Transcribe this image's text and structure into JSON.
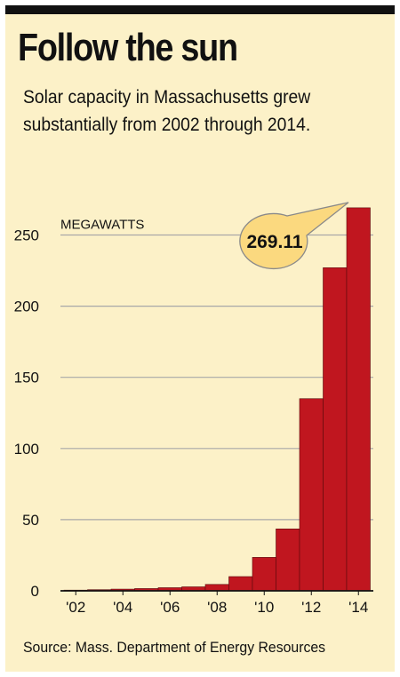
{
  "header": {
    "title": "Follow the sun",
    "subtitle": "Solar capacity in Massachusetts grew substantially from 2002 through 2014."
  },
  "source": "Source: Mass. Department of Energy Resources",
  "callout": {
    "label": "269.11"
  },
  "colors": {
    "background": "#fcf1c8",
    "bar": "#c0161f",
    "callout": "#fbd97f",
    "grid": "#a8a8a8",
    "topRule": "#111111"
  },
  "chart_data": {
    "type": "bar",
    "title": "Follow the sun",
    "ylabel": "MEGAWATTS",
    "xlabel": "",
    "ylim": [
      0,
      270
    ],
    "yticks": [
      0,
      50,
      100,
      150,
      200,
      250
    ],
    "categories": [
      "2002",
      "2003",
      "2004",
      "2005",
      "2006",
      "2007",
      "2008",
      "2009",
      "2010",
      "2011",
      "2012",
      "2013",
      "2014"
    ],
    "values": [
      0.5,
      0.8,
      1.2,
      1.6,
      2.2,
      2.8,
      4.5,
      10,
      23.5,
      43.5,
      135,
      227,
      269.11
    ],
    "xtick_labels": [
      "'02",
      "'04",
      "'06",
      "'08",
      "'10",
      "'12",
      "'14"
    ],
    "annotations": [
      {
        "category": "2014",
        "text": "269.11"
      }
    ],
    "grid": true,
    "legend": "none"
  }
}
